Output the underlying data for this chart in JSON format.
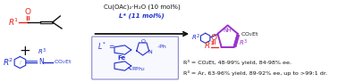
{
  "figsize": [
    3.78,
    0.92
  ],
  "dpi": 100,
  "bg_color": "#ffffff",
  "red": "#e8231a",
  "blue": "#2030cc",
  "purple": "#9933cc",
  "black": "#111111",
  "orange": "#cc6600",
  "catalyst_line1": "Cu(OAc)₂·H₂O (10 mol%)",
  "catalyst_line2": "L* (11 mol%)",
  "result_line1": "R³ = CO₂Et, 48-99% yield, 84-98% ee.",
  "result_line2": "R³ = Ar, 63-96% yield, 89-92% ee, up to >99:1 dr.",
  "result_fontsize": 4.6,
  "catalyst_fontsize": 5.0,
  "label_fontsize": 6.5,
  "sub_fontsize": 4.2,
  "small_fontsize": 4.5
}
